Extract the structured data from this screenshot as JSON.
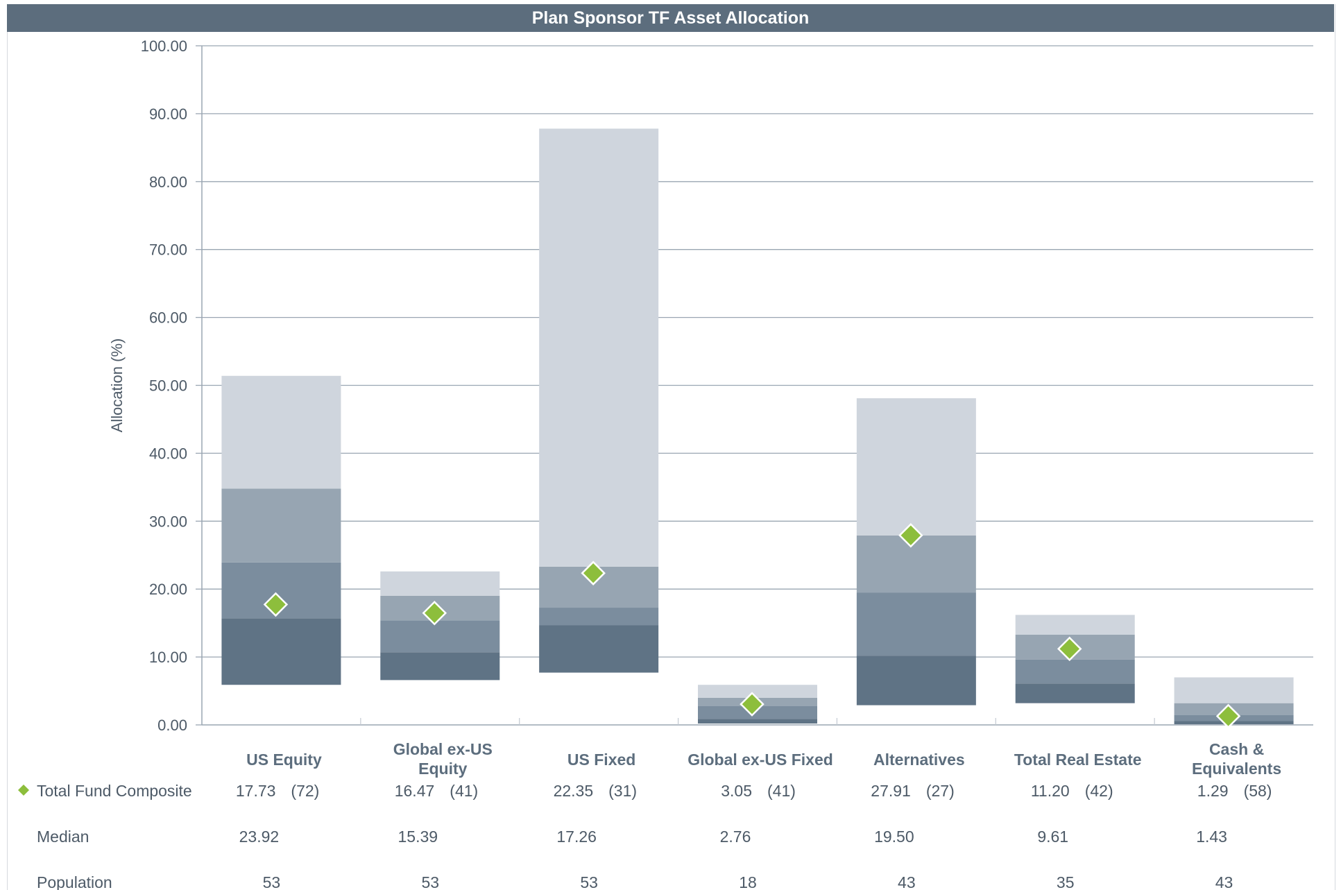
{
  "title": "Plan Sponsor TF Asset Allocation",
  "colors": {
    "title_bg": "#5c6d7d",
    "band_1": "#cfd5dd",
    "band_2": "#97a5b2",
    "band_3": "#7b8d9e",
    "band_4": "#5f7385",
    "marker": "#8dbe3c",
    "grid": "#9aa6b2"
  },
  "chart_data": {
    "type": "bar",
    "subtype": "floating percentile bars",
    "title": "Plan Sponsor TF Asset Allocation",
    "ylabel": "Allocation (%)",
    "ylim": [
      0,
      100
    ],
    "yticks": [
      "0.00",
      "10.00",
      "20.00",
      "30.00",
      "40.00",
      "50.00",
      "60.00",
      "70.00",
      "80.00",
      "90.00",
      "100.00"
    ],
    "grid": true,
    "categories": [
      {
        "line1": "US Equity",
        "line2": ""
      },
      {
        "line1": "Global ex-US",
        "line2": "Equity"
      },
      {
        "line1": "US Fixed",
        "line2": ""
      },
      {
        "line1": "Global ex-US Fixed",
        "line2": ""
      },
      {
        "line1": "Alternatives",
        "line2": ""
      },
      {
        "line1": "Total Real Estate",
        "line2": ""
      },
      {
        "line1": "Cash &",
        "line2": "Equivalents"
      }
    ],
    "ranges": [
      [
        5.9,
        15.7,
        23.92,
        34.8,
        51.4
      ],
      [
        6.6,
        10.7,
        15.39,
        19.0,
        22.6
      ],
      [
        7.7,
        14.7,
        17.26,
        23.3,
        87.8
      ],
      [
        0.2,
        0.9,
        2.76,
        4.0,
        5.9
      ],
      [
        2.9,
        10.2,
        19.5,
        27.9,
        48.1
      ],
      [
        3.2,
        6.1,
        9.61,
        13.3,
        16.2
      ],
      [
        0.1,
        0.6,
        1.43,
        3.2,
        7.0
      ]
    ],
    "series": [
      {
        "name": "Total Fund Composite",
        "values": [
          17.73,
          16.47,
          22.35,
          3.05,
          27.91,
          11.2,
          1.29
        ],
        "ranks": [
          "(72)",
          "(41)",
          "(31)",
          "(41)",
          "(27)",
          "(42)",
          "(58)"
        ]
      }
    ],
    "table": {
      "composite_label": "Total Fund Composite",
      "composite_values": [
        "17.73",
        "16.47",
        "22.35",
        "3.05",
        "27.91",
        "11.20",
        "1.29"
      ],
      "composite_ranks": [
        "(72)",
        "(41)",
        "(31)",
        "(41)",
        "(27)",
        "(42)",
        "(58)"
      ],
      "median_label": "Median",
      "median_values": [
        "23.92",
        "15.39",
        "17.26",
        "2.76",
        "19.50",
        "9.61",
        "1.43"
      ],
      "population_label": "Population",
      "population_values": [
        "53",
        "53",
        "53",
        "18",
        "43",
        "35",
        "43"
      ]
    }
  }
}
